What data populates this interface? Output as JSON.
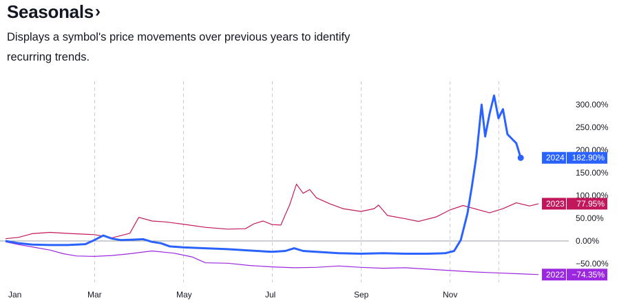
{
  "header": {
    "title": "Seasonals",
    "title_icon": "chevron-right-icon",
    "description": "Displays a symbol's price movements over previous years to identify recurring trends."
  },
  "chart_data": {
    "type": "line",
    "title": "",
    "xlabel": "",
    "ylabel": "",
    "x_tick_labels": [
      "Jan",
      "Mar",
      "May",
      "Jul",
      "Sep",
      "Nov"
    ],
    "y_tick_labels": [
      "300.00%",
      "250.00%",
      "200.00%",
      "150.00%",
      "100.00%",
      "50.00%",
      "0.00%",
      "−50.00%"
    ],
    "y_ticks": [
      300,
      250,
      200,
      150,
      100,
      50,
      0,
      -50
    ],
    "ylim": [
      -85,
      340
    ],
    "x_unit": "month (Jan = 0, Dec 31 = 12)",
    "grid": "vertical dashed lines at every other month",
    "zero_line": true,
    "series": [
      {
        "name": "2024",
        "color": "#2962ff",
        "badge_value": "182.90%",
        "points": [
          [
            0,
            0
          ],
          [
            0.3,
            -5
          ],
          [
            0.6,
            -8
          ],
          [
            1,
            -9
          ],
          [
            1.4,
            -9
          ],
          [
            1.8,
            -7
          ],
          [
            2,
            2
          ],
          [
            2.2,
            12
          ],
          [
            2.4,
            5
          ],
          [
            2.6,
            2
          ],
          [
            2.9,
            3
          ],
          [
            3.1,
            4
          ],
          [
            3.3,
            -2
          ],
          [
            3.5,
            -5
          ],
          [
            3.7,
            -12
          ],
          [
            4,
            -14
          ],
          [
            4.5,
            -16
          ],
          [
            5,
            -18
          ],
          [
            5.5,
            -21
          ],
          [
            6,
            -24
          ],
          [
            6.3,
            -22
          ],
          [
            6.5,
            -16
          ],
          [
            6.7,
            -22
          ],
          [
            7,
            -24
          ],
          [
            7.5,
            -27
          ],
          [
            8,
            -28
          ],
          [
            8.5,
            -27
          ],
          [
            9,
            -28
          ],
          [
            9.5,
            -28
          ],
          [
            9.9,
            -27
          ],
          [
            10.1,
            -22
          ],
          [
            10.25,
            2
          ],
          [
            10.4,
            60
          ],
          [
            10.5,
            120
          ],
          [
            10.6,
            185
          ],
          [
            10.72,
            300
          ],
          [
            10.8,
            230
          ],
          [
            10.9,
            280
          ],
          [
            11,
            320
          ],
          [
            11.1,
            270
          ],
          [
            11.2,
            290
          ],
          [
            11.3,
            235
          ],
          [
            11.4,
            225
          ],
          [
            11.5,
            215
          ],
          [
            11.6,
            183
          ]
        ]
      },
      {
        "name": "2023",
        "color": "#c2185b",
        "badge_value": "77.95%",
        "points": [
          [
            0,
            5
          ],
          [
            0.3,
            8
          ],
          [
            0.6,
            16
          ],
          [
            1,
            19
          ],
          [
            1.5,
            16
          ],
          [
            2,
            14
          ],
          [
            2.4,
            7
          ],
          [
            2.8,
            17
          ],
          [
            3,
            52
          ],
          [
            3.3,
            44
          ],
          [
            3.6,
            42
          ],
          [
            4,
            37
          ],
          [
            4.5,
            30
          ],
          [
            5,
            26
          ],
          [
            5.4,
            27
          ],
          [
            5.6,
            38
          ],
          [
            5.8,
            44
          ],
          [
            6,
            36
          ],
          [
            6.2,
            35
          ],
          [
            6.3,
            58
          ],
          [
            6.4,
            80
          ],
          [
            6.55,
            125
          ],
          [
            6.7,
            105
          ],
          [
            6.85,
            113
          ],
          [
            7,
            95
          ],
          [
            7.3,
            82
          ],
          [
            7.6,
            71
          ],
          [
            8,
            65
          ],
          [
            8.3,
            71
          ],
          [
            8.4,
            79
          ],
          [
            8.6,
            56
          ],
          [
            9,
            49
          ],
          [
            9.3,
            43
          ],
          [
            9.7,
            53
          ],
          [
            10,
            68
          ],
          [
            10.3,
            78
          ],
          [
            10.6,
            70
          ],
          [
            10.9,
            62
          ],
          [
            11.2,
            71
          ],
          [
            11.5,
            84
          ],
          [
            11.8,
            77
          ],
          [
            12,
            82
          ]
        ]
      },
      {
        "name": "2022",
        "color": "#9c27e0",
        "badge_value": "−74.35%",
        "points": [
          [
            0,
            -2
          ],
          [
            0.3,
            -8
          ],
          [
            0.6,
            -13
          ],
          [
            1,
            -20
          ],
          [
            1.3,
            -28
          ],
          [
            1.6,
            -33
          ],
          [
            2,
            -34
          ],
          [
            2.4,
            -32
          ],
          [
            2.8,
            -28
          ],
          [
            3.3,
            -22
          ],
          [
            3.8,
            -27
          ],
          [
            4.2,
            -35
          ],
          [
            4.5,
            -48
          ],
          [
            5,
            -49
          ],
          [
            5.5,
            -54
          ],
          [
            6,
            -57
          ],
          [
            6.5,
            -59
          ],
          [
            7,
            -58
          ],
          [
            7.5,
            -55
          ],
          [
            8,
            -58
          ],
          [
            8.5,
            -60
          ],
          [
            9,
            -59
          ],
          [
            9.5,
            -62
          ],
          [
            10,
            -65
          ],
          [
            10.5,
            -68
          ],
          [
            11,
            -70
          ],
          [
            11.5,
            -72
          ],
          [
            12,
            -74
          ]
        ]
      }
    ]
  }
}
